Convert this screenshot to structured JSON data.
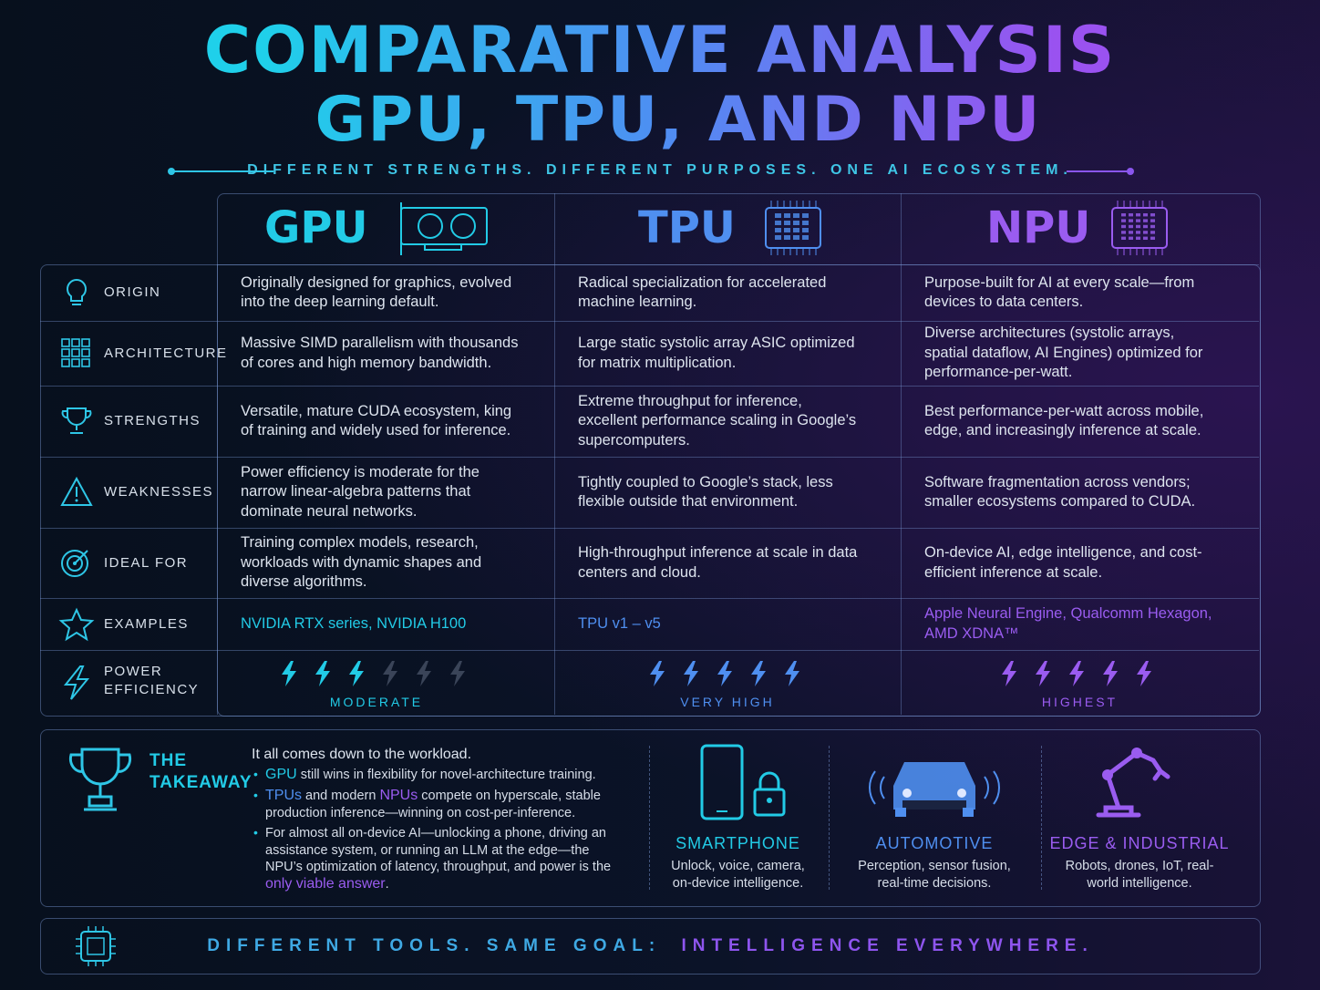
{
  "title": {
    "line1": "COMPARATIVE ANALYSIS",
    "line2": "GPU, TPU, AND NPU"
  },
  "subtitle": "DIFFERENT STRENGTHS. DIFFERENT PURPOSES. ONE AI ECOSYSTEM.",
  "table": {
    "columns": [
      "GPU",
      "TPU",
      "NPU"
    ],
    "rows": [
      {
        "label": "ORIGIN",
        "cells": [
          "Originally designed for graphics, evolved into the deep learning default.",
          "Radical specialization for accelerated machine learning.",
          "Purpose-built for AI at every scale—from devices to data centers."
        ]
      },
      {
        "label": "ARCHITECTURE",
        "cells": [
          "Massive SIMD parallelism with thousands of cores and high memory bandwidth.",
          "Large static systolic array ASIC optimized for matrix multiplication.",
          "Diverse architectures (systolic arrays, spatial dataflow, AI Engines) optimized for performance-per-watt."
        ]
      },
      {
        "label": "STRENGTHS",
        "cells": [
          "Versatile, mature CUDA ecosystem, king of training and widely used for inference.",
          "Extreme throughput for inference, excellent performance scaling in Google’s supercomputers.",
          "Best performance-per-watt across mobile, edge, and increasingly inference at scale."
        ]
      },
      {
        "label": "WEAKNESSES",
        "cells": [
          "Power efficiency is moderate for the narrow linear-algebra patterns that dominate neural networks.",
          "Tightly coupled to Google’s stack, less flexible outside that environment.",
          "Software fragmentation across vendors; smaller ecosystems compared to CUDA."
        ]
      },
      {
        "label": "IDEAL FOR",
        "cells": [
          "Training complex models, research, workloads with dynamic shapes and diverse algorithms.",
          "High-throughput inference at scale in data centers and cloud.",
          "On-device AI, edge intelligence, and cost-efficient inference at scale."
        ]
      },
      {
        "label": "EXAMPLES",
        "cells": [
          "NVIDIA RTX series, NVIDIA H100",
          "TPU v1 – v5",
          "Apple Neural Engine, Qualcomm Hexagon, AMD XDNA™"
        ]
      }
    ],
    "power": {
      "label": "POWER EFFICIENCY",
      "ratings": [
        {
          "lit": 3,
          "total": 6,
          "label": "MODERATE"
        },
        {
          "lit": 5,
          "total": 5,
          "label": "VERY HIGH"
        },
        {
          "lit": 5,
          "total": 5,
          "label": "HIGHEST"
        }
      ]
    }
  },
  "takeaway": {
    "heading": "THE TAKEAWAY",
    "intro": "It all comes down to the workload.",
    "bullets": [
      [
        "GPU",
        " still wins in flexibility for novel-architecture training."
      ],
      [
        "TPUs",
        " and modern ",
        "NPUs",
        " compete on hyperscale, stable production inference—winning on cost-per-inference."
      ],
      [
        "For almost all on-device AI—unlocking a phone, driving an assistance system, or running an LLM at the edge—the NPU’s optimization of latency, throughput, and power is the ",
        "only viable answer",
        "."
      ]
    ]
  },
  "use_cases": [
    {
      "title": "SMARTPHONE",
      "text": "Unlock, voice, camera, on-device intelligence."
    },
    {
      "title": "AUTOMOTIVE",
      "text": "Perception, sensor fusion, real-time decisions."
    },
    {
      "title": "EDGE & INDUSTRIAL",
      "text": "Robots, drones, IoT, real-world intelligence."
    }
  ],
  "footer": {
    "part1": "DIFFERENT TOOLS. SAME GOAL:",
    "part2": "INTELLIGENCE EVERYWHERE."
  }
}
